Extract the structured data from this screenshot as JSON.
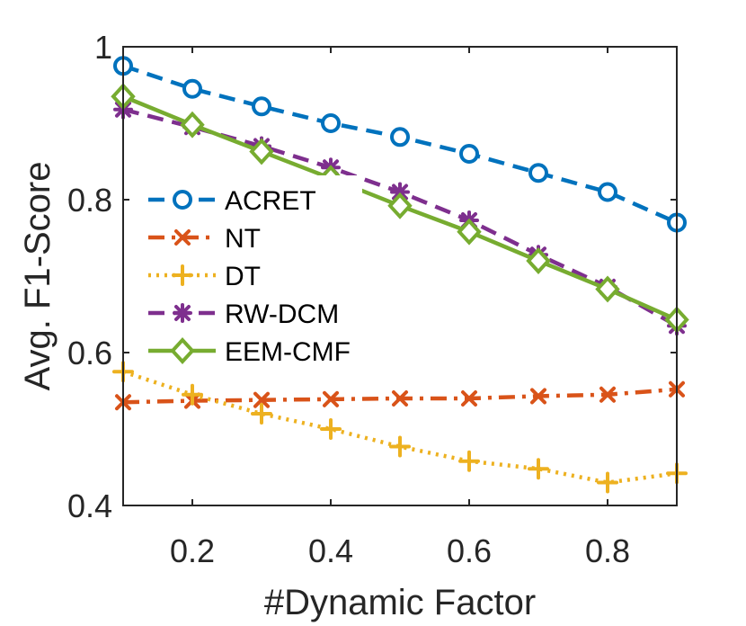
{
  "chart_data": {
    "type": "line",
    "xlabel": "#Dynamic Factor",
    "ylabel": "Avg. F1-Score",
    "xlim": [
      0.1,
      0.9
    ],
    "ylim": [
      0.4,
      1.0
    ],
    "x": [
      0.1,
      0.2,
      0.3,
      0.4,
      0.5,
      0.6,
      0.7,
      0.8,
      0.9
    ],
    "xticks": [
      0.2,
      0.4,
      0.6,
      0.8
    ],
    "xtick_labels": [
      "0.2",
      "0.4",
      "0.6",
      "0.8"
    ],
    "yticks": [
      0.4,
      0.6,
      0.8,
      1.0
    ],
    "ytick_labels": [
      "0.4",
      "0.6",
      "0.8",
      "1"
    ],
    "grid": false,
    "legend_position": "left",
    "series": [
      {
        "name": "ACRET",
        "color": "#0072BD",
        "line": "dashed",
        "marker": "circle",
        "values": [
          0.975,
          0.945,
          0.922,
          0.9,
          0.882,
          0.86,
          0.835,
          0.81,
          0.77
        ]
      },
      {
        "name": "NT",
        "color": "#D95319",
        "line": "dashdot",
        "marker": "x",
        "values": [
          0.535,
          0.537,
          0.538,
          0.539,
          0.54,
          0.54,
          0.543,
          0.545,
          0.552
        ]
      },
      {
        "name": "DT",
        "color": "#EDB120",
        "line": "dotted",
        "marker": "plus",
        "values": [
          0.575,
          0.545,
          0.52,
          0.5,
          0.477,
          0.458,
          0.448,
          0.43,
          0.442
        ]
      },
      {
        "name": "RW-DCM",
        "color": "#7E2F8E",
        "line": "dashed",
        "marker": "asterisk",
        "values": [
          0.918,
          0.895,
          0.87,
          0.842,
          0.81,
          0.773,
          0.728,
          0.686,
          0.635
        ]
      },
      {
        "name": "EEM-CMF",
        "color": "#77AC30",
        "line": "solid",
        "marker": "diamond",
        "values": [
          0.935,
          0.898,
          0.863,
          0.828,
          0.792,
          0.758,
          0.72,
          0.683,
          0.643
        ]
      }
    ]
  }
}
